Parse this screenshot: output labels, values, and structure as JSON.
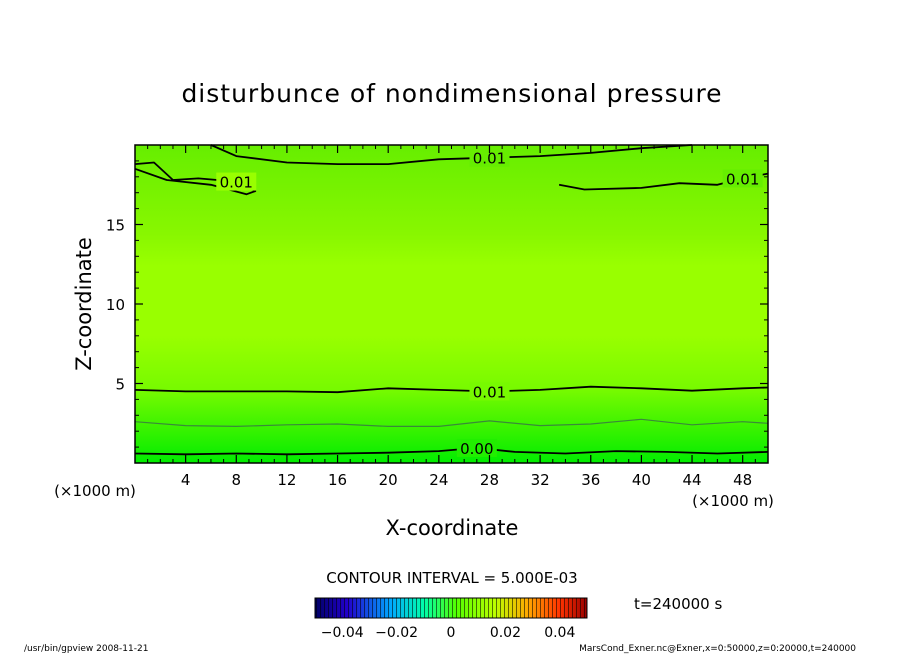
{
  "chart_data": {
    "type": "heatmap",
    "title": "disturbunce of nondimensional pressure",
    "xlabel": "X-coordinate",
    "ylabel": "Z-coordinate",
    "x_unit": "(×1000 m)",
    "y_unit": "(×1000 m)",
    "xlim": [
      0,
      50
    ],
    "ylim": [
      0,
      20
    ],
    "x_ticks": [
      4,
      8,
      12,
      16,
      20,
      24,
      28,
      32,
      36,
      40,
      44,
      48
    ],
    "y_ticks": [
      5,
      10,
      15
    ],
    "contours": [
      {
        "label": "0.00",
        "x": [
          0,
          4,
          8,
          12,
          16,
          20,
          24,
          27,
          30,
          34,
          38,
          42,
          46,
          50
        ],
        "z": [
          0.6,
          0.55,
          0.6,
          0.55,
          0.6,
          0.65,
          0.75,
          0.95,
          0.7,
          0.6,
          0.75,
          0.7,
          0.6,
          0.7
        ]
      },
      {
        "label": "",
        "x": [
          0,
          4,
          8,
          12,
          16,
          20,
          24,
          28,
          32,
          36,
          40,
          44,
          48,
          50
        ],
        "z": [
          2.6,
          2.35,
          2.3,
          2.4,
          2.45,
          2.3,
          2.3,
          2.65,
          2.35,
          2.45,
          2.75,
          2.4,
          2.6,
          2.5
        ]
      },
      {
        "label": "0.01",
        "x": [
          0,
          4,
          8,
          12,
          16,
          20,
          24,
          28,
          32,
          36,
          40,
          44,
          48,
          50
        ],
        "z": [
          4.6,
          4.5,
          4.5,
          4.5,
          4.45,
          4.7,
          4.6,
          4.5,
          4.6,
          4.8,
          4.7,
          4.55,
          4.7,
          4.75
        ]
      },
      {
        "label": "0.01",
        "x": [
          0,
          1.5,
          3,
          5,
          8,
          9.5,
          8.8,
          6,
          2.5,
          0
        ],
        "z": [
          18.8,
          18.9,
          17.8,
          17.9,
          17.7,
          17.1,
          16.9,
          17.5,
          17.8,
          18.5
        ]
      },
      {
        "label": "0.01",
        "x": [
          6,
          8,
          12,
          16,
          20,
          24,
          28,
          32,
          36,
          40,
          44
        ],
        "z": [
          20,
          19.3,
          18.9,
          18.8,
          18.8,
          19.1,
          19.2,
          19.3,
          19.5,
          19.8,
          20
        ]
      },
      {
        "label": "0.01",
        "x": [
          33.5,
          35.5,
          40,
          43,
          46,
          48,
          50
        ],
        "z": [
          17.5,
          17.2,
          17.3,
          17.6,
          17.5,
          17.9,
          18.2
        ]
      }
    ],
    "colorbar": {
      "label": "CONTOUR INTERVAL = 5.000E-03",
      "ticks": [
        "−0.04",
        "−0.02",
        "0",
        "0.02",
        "0.04"
      ],
      "range": [
        -0.05,
        0.05
      ]
    },
    "colors": {
      "field_low": "#00ee00",
      "field_mid": "#99ff00",
      "field_top": "#66ee00"
    }
  },
  "annotations": {
    "time": "t=240000 s",
    "left_footer": "/usr/bin/gpview   2008-11-21",
    "right_footer": "MarsCond_Exner.nc@Exner,x=0:50000,z=0:20000,t=240000"
  }
}
